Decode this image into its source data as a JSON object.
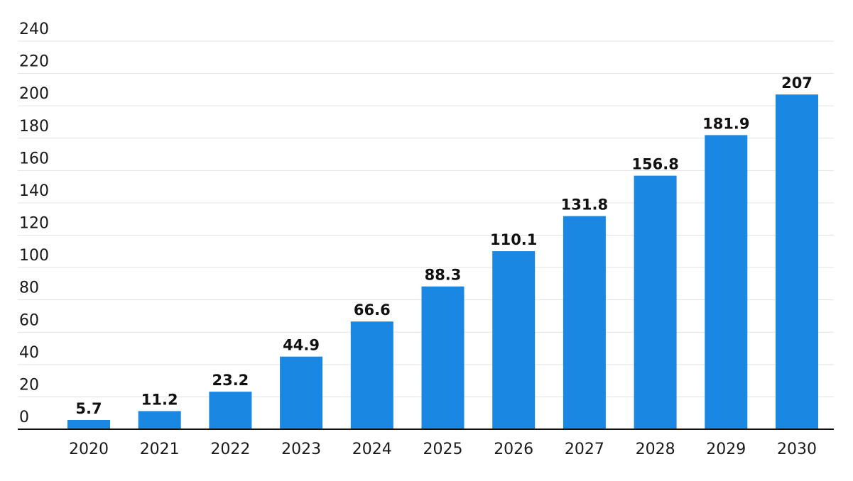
{
  "chart_data": {
    "type": "bar",
    "categories": [
      "2020",
      "2021",
      "2022",
      "2023",
      "2024",
      "2025",
      "2026",
      "2027",
      "2028",
      "2029",
      "2030"
    ],
    "values": [
      5.7,
      11.2,
      23.2,
      44.9,
      66.6,
      88.3,
      110.1,
      131.8,
      156.8,
      181.9,
      207
    ],
    "data_labels": [
      "5.7",
      "11.2",
      "23.2",
      "44.9",
      "66.6",
      "88.3",
      "110.1",
      "131.8",
      "156.8",
      "181.9",
      "207"
    ],
    "y_ticks": [
      "0",
      "20",
      "40",
      "60",
      "80",
      "100",
      "120",
      "140",
      "160",
      "180",
      "200",
      "220",
      "240"
    ],
    "ylim": [
      0,
      240
    ],
    "grid": true,
    "legend": "none",
    "colors": {
      "bar": "#1a88e3",
      "grid": "#e3e3e3",
      "axis": "#111111"
    }
  }
}
